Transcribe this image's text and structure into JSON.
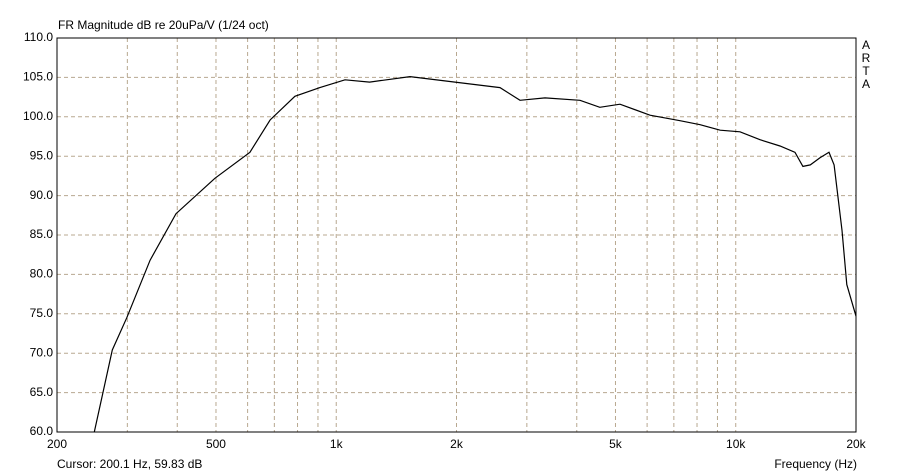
{
  "chart_data": {
    "type": "line",
    "title": "FR Magnitude dB re 20uPa/V (1/24 oct)",
    "cursor": "Cursor: 200.1 Hz, 59.83 dB",
    "x_label": "Frequency (Hz)",
    "side_label": [
      "A",
      "R",
      "T",
      "A"
    ],
    "log_x": true,
    "xlim": [
      200,
      20000
    ],
    "ylim": [
      60,
      110
    ],
    "xticks": [
      200,
      500,
      {
        "value": 1000,
        "label": "1k"
      },
      {
        "value": 2000,
        "label": "2k"
      },
      {
        "value": 5000,
        "label": "5k"
      },
      {
        "value": 10000,
        "label": "10k"
      },
      {
        "value": 20000,
        "label": "20k"
      }
    ],
    "x_grid": [
      300,
      400,
      600,
      700,
      800,
      900,
      3000,
      4000,
      6000,
      7000,
      8000,
      9000
    ],
    "yticks": [
      {
        "value": 60,
        "label": "60.0"
      },
      {
        "value": 65,
        "label": "65.0"
      },
      {
        "value": 70,
        "label": "70.0"
      },
      {
        "value": 75,
        "label": "75.0"
      },
      {
        "value": 80,
        "label": "80.0"
      },
      {
        "value": 85,
        "label": "85.0"
      },
      {
        "value": 90,
        "label": "90.0"
      },
      {
        "value": 95,
        "label": "95.0"
      },
      {
        "value": 100,
        "label": "100.0"
      },
      {
        "value": 105,
        "label": "105.0"
      },
      {
        "value": 110,
        "label": "110.0"
      }
    ],
    "grid": true,
    "series": [
      {
        "color": "#000000",
        "x": [
          248,
          275,
          299,
          342,
          397,
          497,
          608,
          683,
          788,
          910,
          1052,
          1212,
          1530,
          1983,
          2570,
          2884,
          3331,
          4075,
          4567,
          5131,
          6101,
          7254,
          8142,
          9142,
          10251,
          11501,
          12903,
          14074,
          14731,
          15370,
          16250,
          17113,
          17630,
          18450,
          18970,
          20000
        ],
        "values": [
          60,
          70.4,
          74.5,
          81.8,
          87.7,
          92.2,
          95.5,
          99.6,
          102.6,
          103.7,
          104.7,
          104.4,
          105.1,
          104.4,
          103.7,
          102.1,
          102.4,
          102.1,
          101.2,
          101.6,
          100.2,
          99.5,
          99.0,
          98.3,
          98.1,
          97.1,
          96.3,
          95.5,
          93.7,
          93.9,
          94.8,
          95.5,
          93.9,
          85.6,
          78.7,
          74.7
        ]
      }
    ]
  }
}
